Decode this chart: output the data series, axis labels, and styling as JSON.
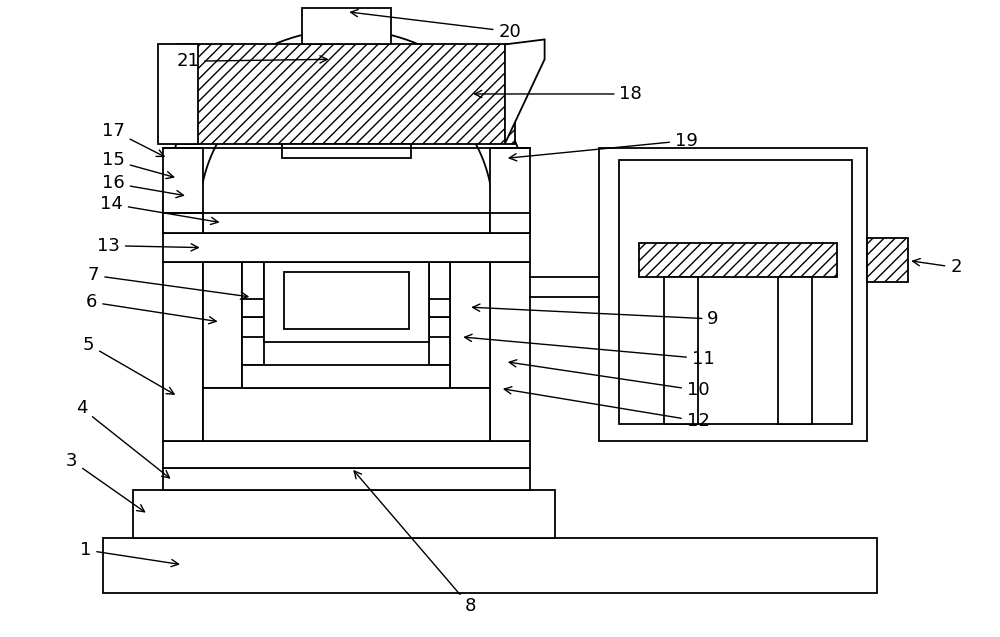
{
  "bg_color": "#ffffff",
  "line_color": "#000000",
  "fig_width": 10.0,
  "fig_height": 6.37,
  "dpi": 100
}
